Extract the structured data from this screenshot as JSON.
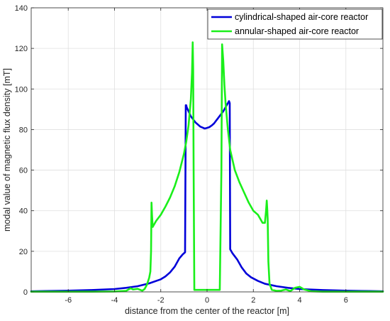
{
  "chart_data": {
    "type": "line",
    "title": "",
    "xlabel": "distance from the center of the reactor [m]",
    "ylabel": "modal value of magnetic flux density [mT]",
    "xlim": [
      -7.6,
      7.6
    ],
    "ylim": [
      0,
      140
    ],
    "xticks": [
      -6,
      -4,
      -2,
      0,
      2,
      4,
      6
    ],
    "yticks": [
      0,
      20,
      40,
      60,
      80,
      100,
      120,
      140
    ],
    "grid": true,
    "legend_position": "top-right",
    "series": [
      {
        "name": "cylindrical-shaped air-core reactor",
        "color": "#0000d9",
        "x": [
          -7.6,
          -7,
          -6,
          -5,
          -4,
          -3.5,
          -3,
          -2.5,
          -2,
          -1.8,
          -1.6,
          -1.4,
          -1.2,
          -1.05,
          -0.95,
          -0.92,
          -0.9,
          -0.88,
          -0.8,
          -0.7,
          -0.6,
          -0.5,
          -0.4,
          -0.3,
          -0.2,
          -0.1,
          0,
          0.1,
          0.2,
          0.3,
          0.4,
          0.5,
          0.6,
          0.7,
          0.8,
          0.9,
          0.95,
          0.98,
          1.0,
          1.1,
          1.3,
          1.5,
          1.7,
          1.9,
          2.2,
          2.5,
          3,
          3.5,
          4,
          5,
          6,
          7,
          7.6
        ],
        "y": [
          0.3,
          0.4,
          0.6,
          0.9,
          1.4,
          2.0,
          2.8,
          4.2,
          6.2,
          7.6,
          9.6,
          12.4,
          16.5,
          18.5,
          19.5,
          92,
          92,
          91,
          89,
          86.5,
          85,
          83.5,
          82.5,
          81.5,
          81,
          80.5,
          80.8,
          81.2,
          82,
          83,
          84.5,
          86,
          87.5,
          89,
          91,
          93,
          94,
          93,
          21,
          19,
          16,
          12,
          9,
          7.2,
          5.4,
          4.0,
          2.8,
          2.0,
          1.4,
          0.9,
          0.6,
          0.4,
          0.3
        ]
      },
      {
        "name": "annular-shaped air-core reactor",
        "color": "#1aef1a",
        "x": [
          -7.6,
          -5,
          -4,
          -3.5,
          -3.3,
          -3.2,
          -3.0,
          -2.8,
          -2.7,
          -2.6,
          -2.5,
          -2.45,
          -2.42,
          -2.4,
          -2.38,
          -2.35,
          -2.3,
          -2.2,
          -2.0,
          -1.8,
          -1.6,
          -1.4,
          -1.2,
          -1.0,
          -0.9,
          -0.8,
          -0.7,
          -0.65,
          -0.62,
          -0.6,
          -0.58,
          -0.55,
          0.55,
          0.62,
          0.65,
          0.7,
          0.75,
          0.8,
          0.9,
          1.0,
          1.2,
          1.4,
          1.6,
          1.8,
          2.0,
          2.2,
          2.4,
          2.5,
          2.55,
          2.58,
          2.6,
          2.62,
          2.65,
          2.7,
          2.8,
          3.0,
          3.2,
          3.4,
          3.6,
          3.8,
          4.0,
          4.2,
          4.5,
          5,
          6,
          7.6
        ],
        "y": [
          0.1,
          0.1,
          0.2,
          0.5,
          1.8,
          1.2,
          1.5,
          0.6,
          1.4,
          3.5,
          7,
          10,
          20,
          44,
          38,
          32,
          33,
          35,
          38,
          42,
          46.5,
          52,
          59,
          68,
          74,
          82,
          95,
          108,
          123,
          110,
          60,
          1,
          1,
          60,
          122,
          114,
          102,
          93,
          80,
          70,
          60,
          54,
          49,
          44,
          40,
          38,
          34,
          34,
          40,
          45,
          41,
          36,
          15,
          4,
          1,
          0.5,
          0.6,
          1.2,
          0.4,
          2.0,
          2.5,
          1.2,
          0.3,
          0.1,
          0.1,
          0.1
        ]
      }
    ]
  }
}
